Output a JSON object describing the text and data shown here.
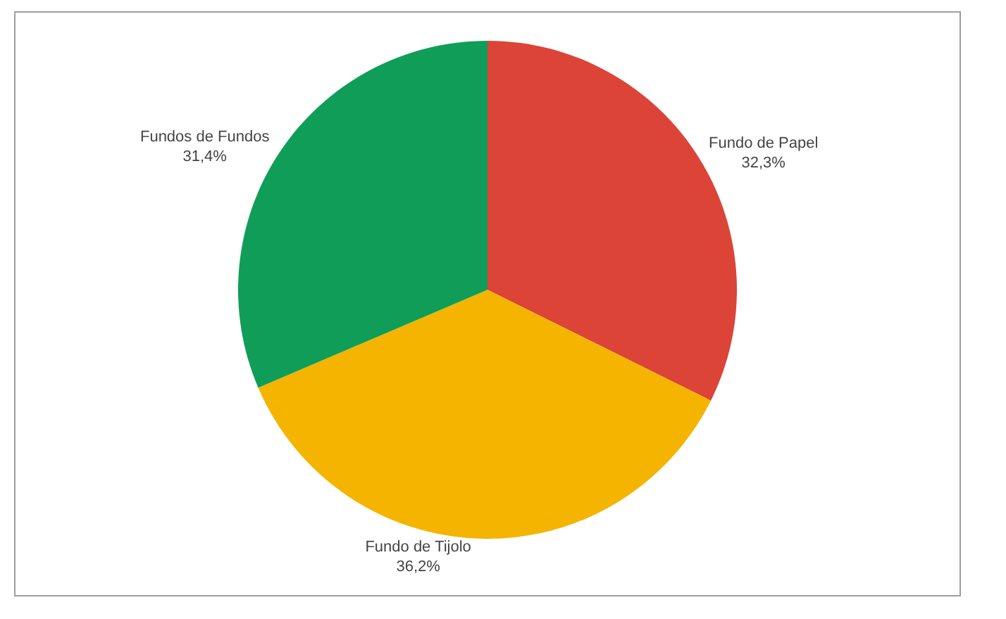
{
  "chart_data": {
    "type": "pie",
    "categories": [
      "Fundo de Papel",
      "Fundo de Tijolo",
      "Fundos de Fundos"
    ],
    "values": [
      32.3,
      36.2,
      31.4
    ],
    "value_labels": [
      "32,3%",
      "36,2%",
      "31,4%"
    ],
    "colors": [
      "#db4437",
      "#f4b400",
      "#0f9d58"
    ],
    "legend": false
  }
}
